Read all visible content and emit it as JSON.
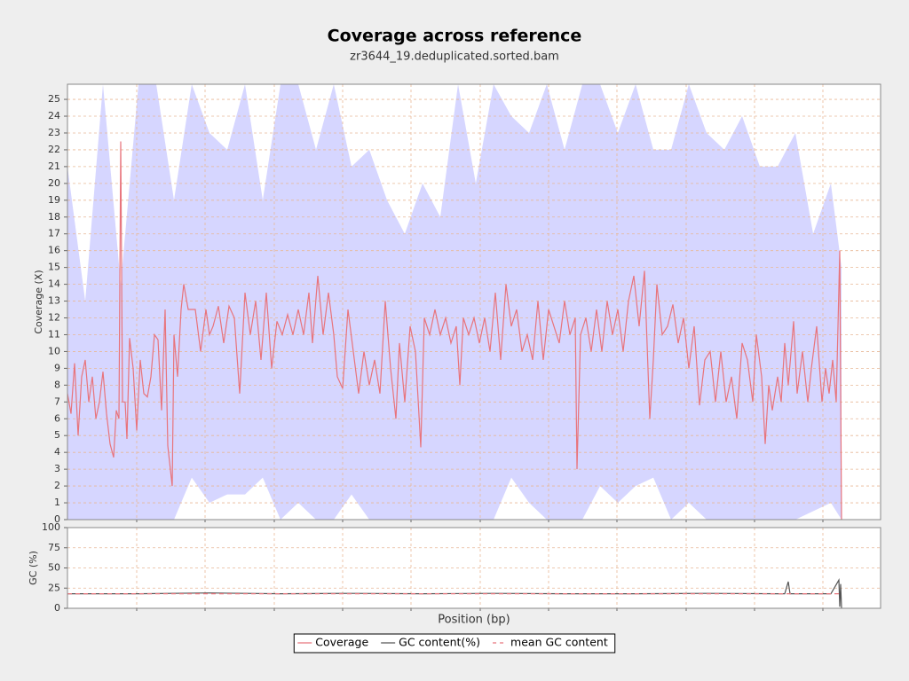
{
  "chart_data": [
    {
      "type": "line",
      "title": "Coverage across reference",
      "subtitle": "zr3644_19.deduplicated.sorted.bam",
      "ylabel": "Coverage (X)",
      "xlim": [
        0,
        916
      ],
      "xticks": [
        78,
        155,
        233,
        310,
        387,
        465,
        542,
        619,
        697,
        774,
        851
      ],
      "xtick_labels": false,
      "ylim": [
        0,
        25.9
      ],
      "yticks": [
        0,
        1,
        2,
        3,
        4,
        5,
        6,
        7,
        8,
        9,
        10,
        11,
        12,
        13,
        14,
        15,
        16,
        17,
        18,
        19,
        20,
        21,
        22,
        23,
        24,
        25
      ],
      "grid": true,
      "legend": "bottom",
      "band": {
        "color": "#d6d6ff",
        "x": [
          0,
          20,
          40,
          60,
          80,
          100,
          120,
          140,
          160,
          180,
          200,
          220,
          240,
          260,
          280,
          300,
          320,
          340,
          360,
          380,
          400,
          420,
          440,
          460,
          480,
          500,
          520,
          540,
          560,
          580,
          600,
          620,
          640,
          660,
          680,
          700,
          720,
          740,
          760,
          780,
          800,
          820,
          840,
          860,
          872
        ],
        "upper": [
          21,
          13,
          25.9,
          14,
          25.9,
          25.9,
          19,
          25.9,
          23,
          22,
          25.9,
          19,
          25.9,
          25.9,
          22,
          25.9,
          21,
          22,
          19,
          17,
          20,
          18,
          25.9,
          20,
          25.9,
          24,
          23,
          25.9,
          22,
          25.9,
          25.9,
          23,
          25.9,
          22,
          22,
          25.9,
          23,
          22,
          24,
          21,
          21,
          23,
          17,
          20,
          15
        ],
        "lower": [
          0,
          0,
          0,
          0,
          0,
          0,
          0,
          2.5,
          1,
          1.5,
          1.5,
          2.5,
          0,
          1,
          0,
          0,
          1.5,
          0,
          0,
          0,
          0,
          0,
          0,
          0,
          0,
          2.5,
          1,
          0,
          0,
          0,
          2,
          1,
          2,
          2.5,
          0,
          1,
          0,
          0,
          0,
          0,
          0,
          0,
          0.5,
          1,
          0
        ]
      },
      "series": [
        {
          "name": "Coverage",
          "color": "#e8747c",
          "x": [
            0,
            4,
            8,
            12,
            16,
            20,
            24,
            28,
            32,
            36,
            40,
            44,
            48,
            52,
            55,
            58,
            60,
            62,
            65,
            67,
            70,
            74,
            78,
            82,
            86,
            90,
            94,
            98,
            102,
            106,
            110,
            113,
            118,
            120,
            124,
            128,
            131,
            136,
            144,
            150,
            156,
            160,
            164,
            170,
            176,
            182,
            188,
            194,
            200,
            206,
            212,
            218,
            224,
            230,
            236,
            242,
            248,
            254,
            260,
            266,
            272,
            276,
            282,
            288,
            294,
            300,
            304,
            310,
            316,
            322,
            328,
            334,
            340,
            346,
            352,
            358,
            364,
            370,
            374,
            380,
            386,
            392,
            398,
            402,
            408,
            414,
            420,
            426,
            432,
            438,
            442,
            446,
            452,
            458,
            464,
            470,
            476,
            482,
            488,
            494,
            500,
            506,
            512,
            518,
            524,
            530,
            536,
            542,
            548,
            554,
            560,
            566,
            572,
            574,
            578,
            584,
            590,
            596,
            602,
            608,
            614,
            620,
            626,
            632,
            638,
            644,
            650,
            656,
            660,
            664,
            670,
            676,
            682,
            688,
            694,
            700,
            706,
            712,
            718,
            724,
            730,
            736,
            742,
            748,
            754,
            760,
            766,
            772,
            776,
            782,
            786,
            790,
            794,
            800,
            804,
            808,
            812,
            818,
            822,
            828,
            834,
            838,
            844,
            850,
            854,
            858,
            862,
            866,
            870,
            872
          ],
          "values": [
            7.5,
            6.3,
            9.3,
            5,
            8.5,
            9.5,
            7,
            8.5,
            6,
            7,
            8.8,
            6.3,
            4.5,
            3.7,
            6.5,
            6,
            22.5,
            7,
            7,
            4.8,
            10.8,
            9,
            5.3,
            9.5,
            7.5,
            7.3,
            8.5,
            11,
            10.7,
            6.5,
            12.5,
            4.4,
            2,
            11,
            8.5,
            12.5,
            14,
            12.5,
            12.5,
            10,
            12.5,
            11,
            11.5,
            12.7,
            10.5,
            12.7,
            12,
            7.5,
            13.5,
            11,
            13,
            9.5,
            13.5,
            9,
            11.8,
            11,
            12.2,
            11,
            12.5,
            11,
            13.5,
            10.5,
            14.5,
            11,
            13.5,
            11,
            8.5,
            7.8,
            12.5,
            10,
            7.5,
            10,
            8,
            9.5,
            7.5,
            13,
            9,
            6,
            10.5,
            7,
            11.5,
            10,
            4.3,
            12,
            11,
            12.5,
            11,
            12,
            10.5,
            11.5,
            8,
            12,
            11,
            12,
            10.5,
            12,
            10,
            13.5,
            9.5,
            14,
            11.5,
            12.5,
            10,
            11,
            9.5,
            13,
            9.5,
            12.5,
            11.5,
            10.5,
            13,
            11,
            12,
            3,
            11,
            12,
            10,
            12.5,
            10,
            13,
            11,
            12.5,
            10,
            13,
            14.5,
            11.5,
            14.8,
            6,
            9.5,
            14,
            11,
            11.5,
            12.8,
            10.5,
            12,
            9,
            11.5,
            6.8,
            9.5,
            10,
            7,
            10,
            7,
            8.5,
            6,
            10.5,
            9.5,
            7,
            11,
            8.5,
            4.5,
            8,
            6.5,
            8.5,
            7,
            10.5,
            8,
            11.8,
            7.5,
            10,
            7,
            9,
            11.5,
            7,
            9,
            7.5,
            9.5,
            7,
            16,
            0
          ]
        }
      ]
    },
    {
      "type": "line",
      "xlabel": "Position (bp)",
      "ylabel": "GC (%)",
      "xlim": [
        0,
        916
      ],
      "xticks": [
        78,
        155,
        233,
        310,
        387,
        465,
        542,
        619,
        697,
        774,
        851
      ],
      "xtick_labels": false,
      "ylim": [
        0,
        100
      ],
      "yticks": [
        0,
        25,
        50,
        75,
        100
      ],
      "grid": true,
      "series": [
        {
          "name": "GC content(%)",
          "color": "#555555",
          "x": [
            0,
            80,
            160,
            240,
            320,
            400,
            480,
            560,
            640,
            720,
            800,
            808,
            812,
            814,
            816,
            860,
            869,
            870,
            871,
            872
          ],
          "values": [
            18,
            18,
            19,
            18,
            18.5,
            18,
            18.5,
            18,
            18,
            18.5,
            18,
            18,
            33,
            18,
            18,
            18,
            35,
            2,
            30,
            0
          ]
        },
        {
          "name": "mean GC content",
          "color": "#e8747c",
          "dashed": true,
          "x": [
            0,
            872
          ],
          "values": [
            18,
            18
          ]
        }
      ]
    }
  ]
}
